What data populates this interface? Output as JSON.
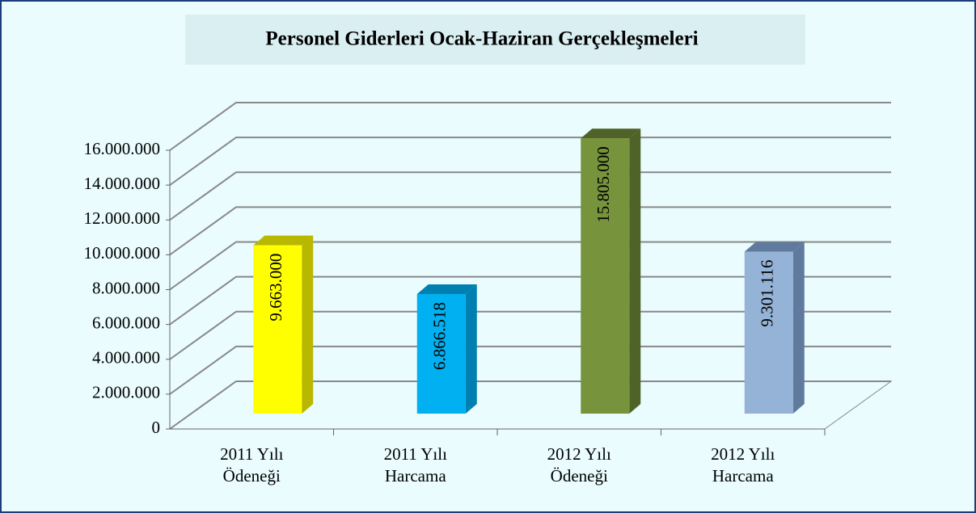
{
  "chart_data": {
    "type": "bar3d",
    "title": "Personel Giderleri Ocak-Haziran Gerçekleşmeleri",
    "categories": [
      [
        "2011 Yılı",
        "Ödeneği"
      ],
      [
        "2011 Yılı",
        "Harcama"
      ],
      [
        "2012 Yılı",
        "Ödeneği"
      ],
      [
        "2012 Yılı",
        "Harcama"
      ]
    ],
    "values": [
      9663000,
      6866518,
      15805000,
      9301116
    ],
    "value_labels": [
      "9.663.000",
      "6.866.518",
      "15.805.000",
      "9.301.116"
    ],
    "colors": [
      "#ffff00",
      "#00b0f0",
      "#77933c",
      "#95b3d7"
    ],
    "side_colors": [
      "#b8b800",
      "#0080b0",
      "#4f6228",
      "#607a9e"
    ],
    "ylim": [
      0,
      16000000
    ],
    "yticks": [
      0,
      {
        "value": 2000000,
        "label": "2.000.000"
      },
      {
        "value": 4000000,
        "label": "4.000.000"
      },
      {
        "value": 6000000,
        "label": "6.000.000"
      },
      {
        "value": 8000000,
        "label": "8.000.000"
      },
      {
        "value": 10000000,
        "label": "10.000.000"
      },
      {
        "value": 12000000,
        "label": "12.000.000"
      },
      {
        "value": 14000000,
        "label": "14.000.000"
      },
      {
        "value": 16000000,
        "label": "16.000.000"
      }
    ],
    "grid": true
  }
}
